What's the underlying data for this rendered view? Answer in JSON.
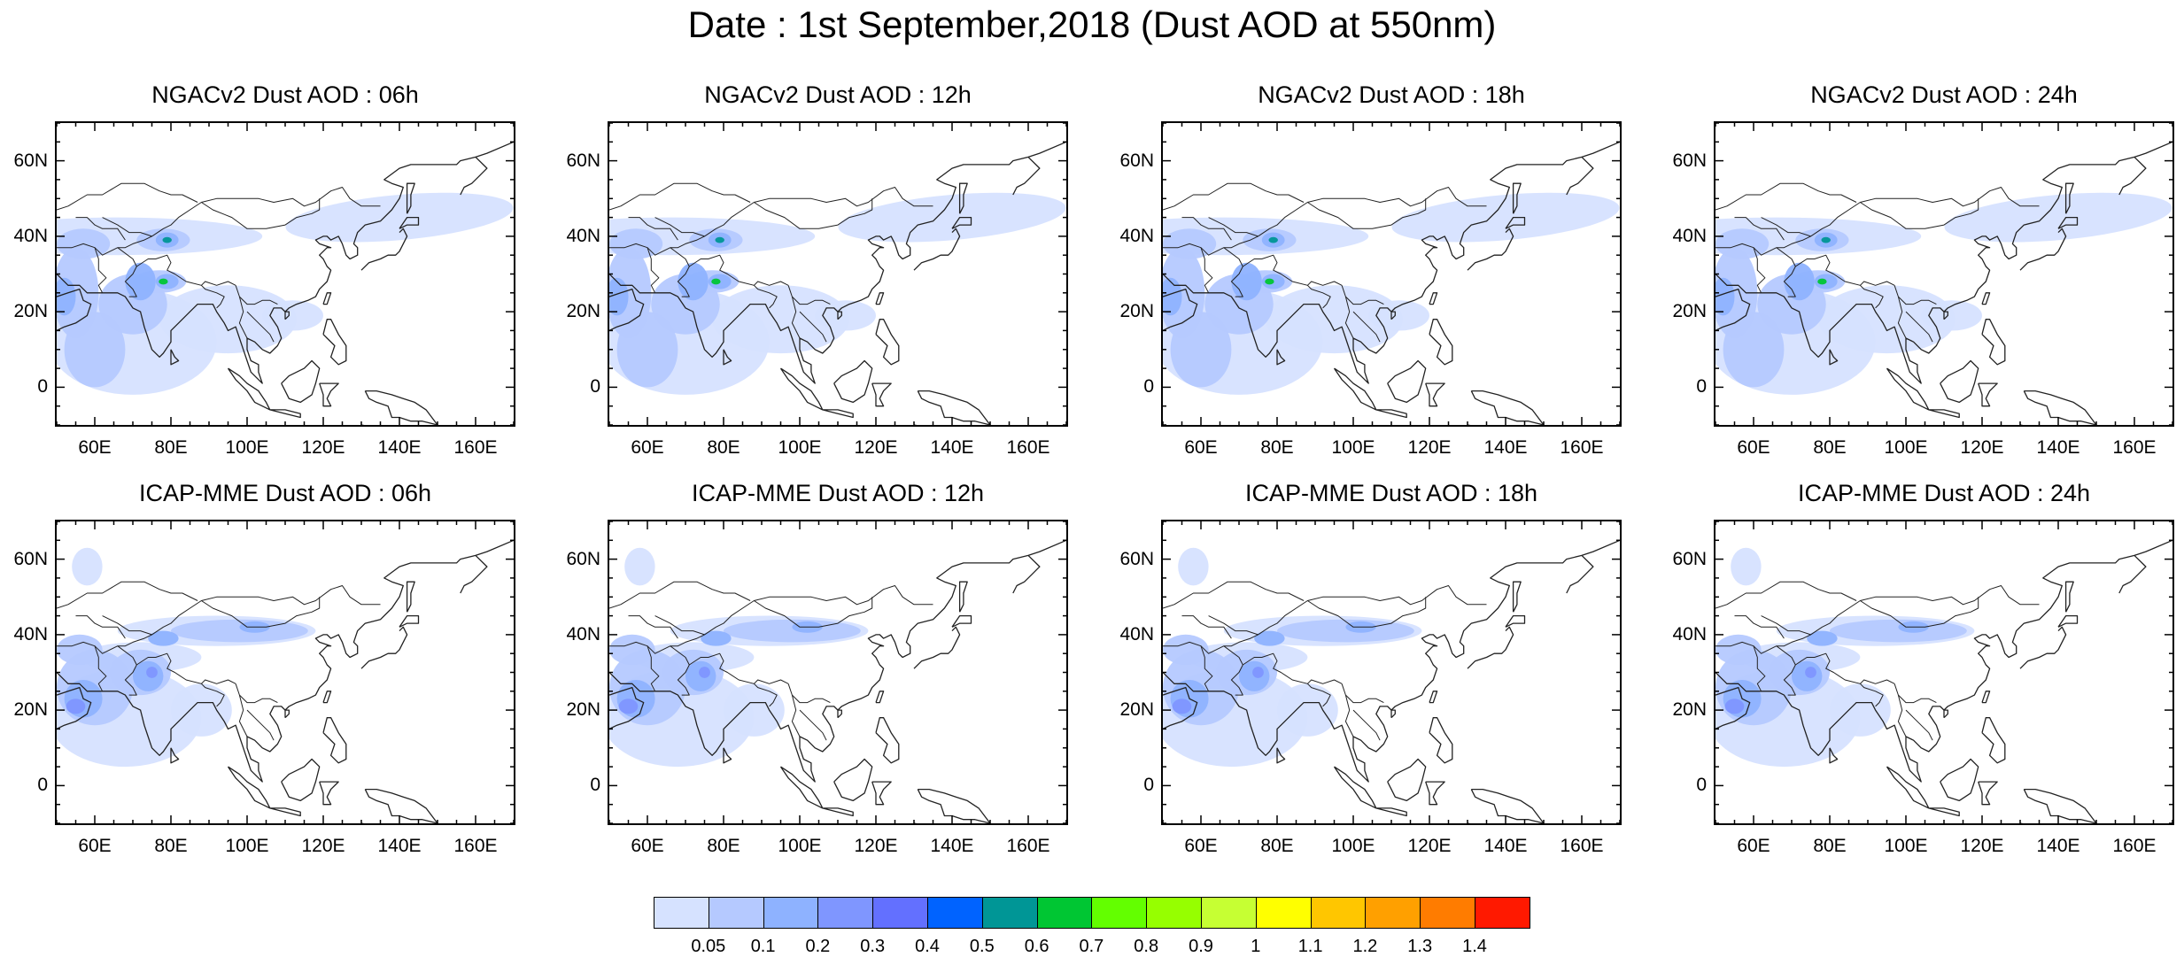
{
  "title": "Date : 1st September,2018 (Dust AOD at 550nm)",
  "panels": [
    {
      "title": "NGACv2 Dust AOD : 06h"
    },
    {
      "title": "NGACv2 Dust AOD : 12h"
    },
    {
      "title": "NGACv2 Dust AOD : 18h"
    },
    {
      "title": "NGACv2 Dust AOD : 24h"
    },
    {
      "title": "ICAP-MME Dust AOD : 06h"
    },
    {
      "title": "ICAP-MME Dust AOD : 12h"
    },
    {
      "title": "ICAP-MME Dust AOD : 18h"
    },
    {
      "title": "ICAP-MME Dust AOD : 24h"
    }
  ],
  "map": {
    "lon_range": [
      50,
      170
    ],
    "lat_range": [
      -10,
      70
    ],
    "lon_ticks": [
      "60E",
      "80E",
      "100E",
      "120E",
      "140E",
      "160E"
    ],
    "lat_ticks": [
      "60N",
      "40N",
      "20N",
      "0"
    ]
  },
  "colorbar": {
    "labels": [
      "0.05",
      "0.1",
      "0.2",
      "0.3",
      "0.4",
      "0.5",
      "0.6",
      "0.7",
      "0.8",
      "0.9",
      "1",
      "1.1",
      "1.2",
      "1.3",
      "1.4"
    ],
    "colors": [
      "#ffffff",
      "#d6e2ff",
      "#b5c9ff",
      "#8eb2ff",
      "#7f96ff",
      "#6370ff",
      "#0063ff",
      "#009696",
      "#00c633",
      "#63ff00",
      "#96ff00",
      "#c6ff33",
      "#ffff00",
      "#ffc600",
      "#ffa000",
      "#ff7c00",
      "#ff1900"
    ]
  }
}
